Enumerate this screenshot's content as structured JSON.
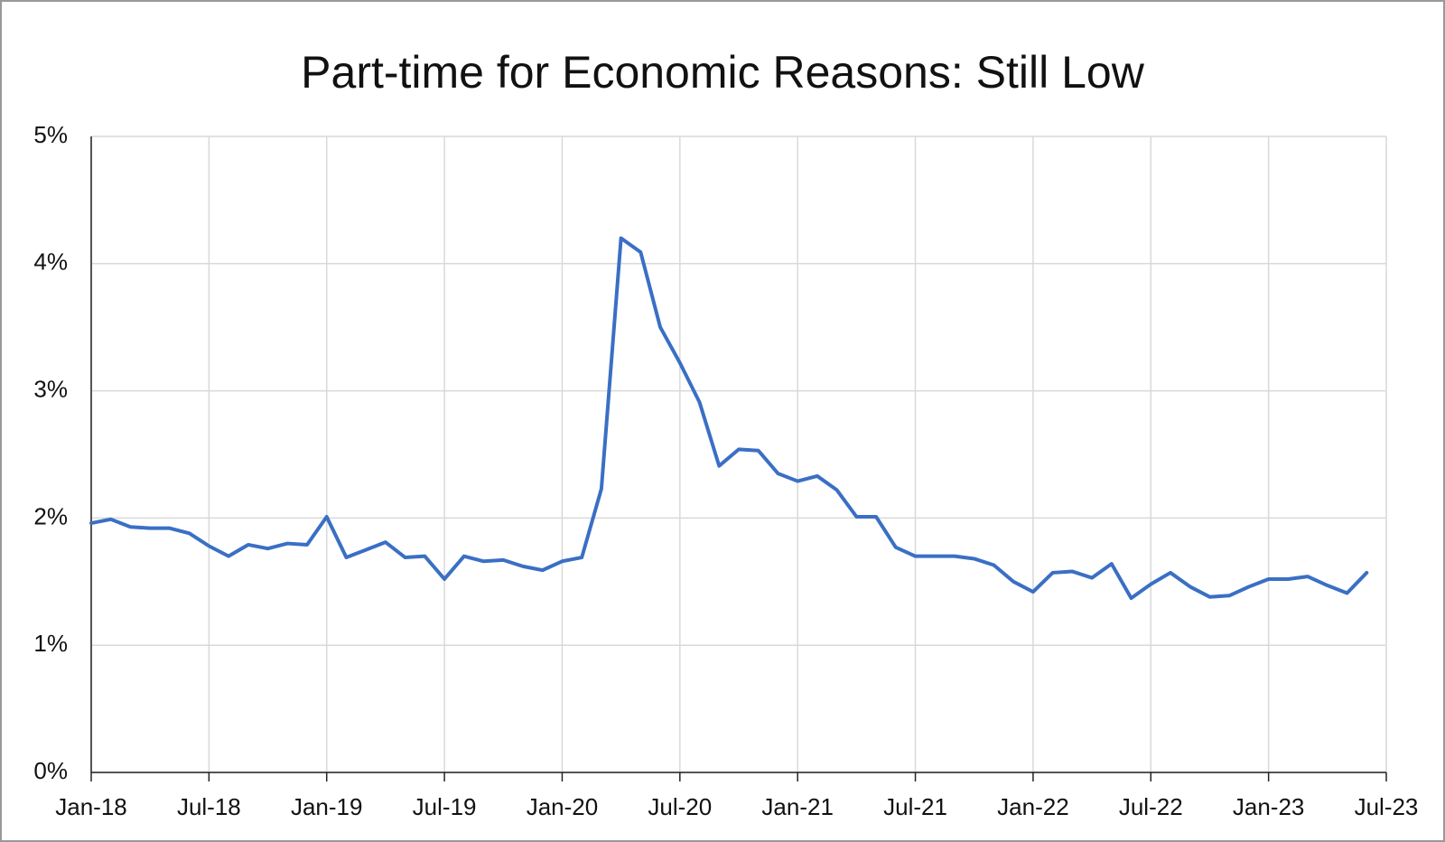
{
  "chart_data": {
    "type": "line",
    "title": "Part-time for Economic Reasons: Still Low",
    "color": "#3a6fc4",
    "grid": true,
    "x": [
      "2018-01",
      "2018-02",
      "2018-03",
      "2018-04",
      "2018-05",
      "2018-06",
      "2018-07",
      "2018-08",
      "2018-09",
      "2018-10",
      "2018-11",
      "2018-12",
      "2019-01",
      "2019-02",
      "2019-03",
      "2019-04",
      "2019-05",
      "2019-06",
      "2019-07",
      "2019-08",
      "2019-09",
      "2019-10",
      "2019-11",
      "2019-12",
      "2020-01",
      "2020-02",
      "2020-03",
      "2020-04",
      "2020-05",
      "2020-06",
      "2020-07",
      "2020-08",
      "2020-09",
      "2020-10",
      "2020-11",
      "2020-12",
      "2021-01",
      "2021-02",
      "2021-03",
      "2021-04",
      "2021-05",
      "2021-06",
      "2021-07",
      "2021-08",
      "2021-09",
      "2021-10",
      "2021-11",
      "2021-12",
      "2022-01",
      "2022-02",
      "2022-03",
      "2022-04",
      "2022-05",
      "2022-06",
      "2022-07",
      "2022-08",
      "2022-09",
      "2022-10",
      "2022-11",
      "2022-12",
      "2023-01",
      "2023-02",
      "2023-03",
      "2023-04",
      "2023-05",
      "2023-06"
    ],
    "values": [
      1.96,
      1.99,
      1.93,
      1.92,
      1.92,
      1.88,
      1.78,
      1.7,
      1.79,
      1.76,
      1.8,
      1.79,
      2.01,
      1.69,
      1.75,
      1.81,
      1.69,
      1.7,
      1.52,
      1.7,
      1.66,
      1.67,
      1.62,
      1.59,
      1.66,
      1.69,
      2.23,
      4.2,
      4.09,
      3.5,
      3.22,
      2.91,
      2.41,
      2.54,
      2.53,
      2.35,
      2.29,
      2.33,
      2.22,
      2.01,
      2.01,
      1.77,
      1.7,
      1.7,
      1.7,
      1.68,
      1.63,
      1.5,
      1.42,
      1.57,
      1.58,
      1.53,
      1.64,
      1.37,
      1.48,
      1.57,
      1.46,
      1.38,
      1.39,
      1.46,
      1.52,
      1.52,
      1.54,
      1.47,
      1.41,
      1.57
    ],
    "xlim": [
      "2018-01",
      "2023-07"
    ],
    "xticks": [
      {
        "value": "2018-01",
        "label": "Jan-18"
      },
      {
        "value": "2018-07",
        "label": "Jul-18"
      },
      {
        "value": "2019-01",
        "label": "Jan-19"
      },
      {
        "value": "2019-07",
        "label": "Jul-19"
      },
      {
        "value": "2020-01",
        "label": "Jan-20"
      },
      {
        "value": "2020-07",
        "label": "Jul-20"
      },
      {
        "value": "2021-01",
        "label": "Jan-21"
      },
      {
        "value": "2021-07",
        "label": "Jul-21"
      },
      {
        "value": "2022-01",
        "label": "Jan-22"
      },
      {
        "value": "2022-07",
        "label": "Jul-22"
      },
      {
        "value": "2023-01",
        "label": "Jan-23"
      },
      {
        "value": "2023-07",
        "label": "Jul-23"
      }
    ],
    "ylim": [
      0,
      5
    ],
    "yticks": [
      {
        "value": 0,
        "label": "0%"
      },
      {
        "value": 1,
        "label": "1%"
      },
      {
        "value": 2,
        "label": "2%"
      },
      {
        "value": 3,
        "label": "3%"
      },
      {
        "value": 4,
        "label": "4%"
      },
      {
        "value": 5,
        "label": "5%"
      }
    ]
  }
}
